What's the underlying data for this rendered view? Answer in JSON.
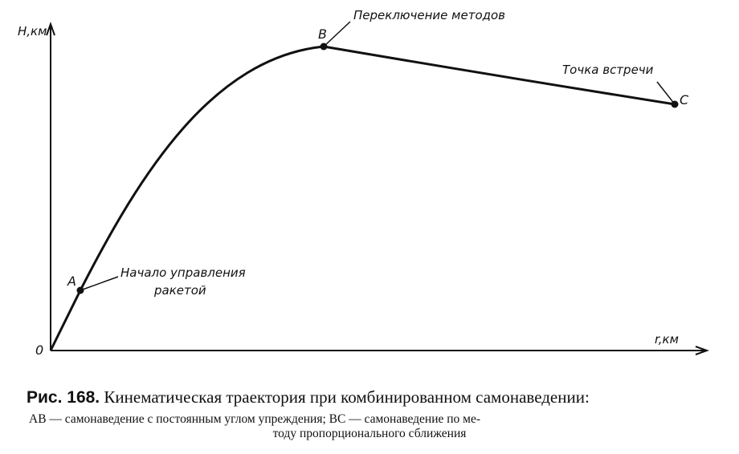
{
  "figure": {
    "y_axis_label": "Н,км",
    "x_axis_label": "r,км",
    "origin_label": "0",
    "points": [
      {
        "label": "A",
        "annotation": [
          "Начало управления",
          "ракетой"
        ]
      },
      {
        "label": "B",
        "annotation": [
          "Переключение методов"
        ]
      },
      {
        "label": "C",
        "annotation": [
          "Точка встречи"
        ]
      }
    ]
  },
  "caption": {
    "number": "Рис. 168.",
    "title": "Кинематическая траектория при комбинированном самонаведении:",
    "lines": [
      "АВ — самонаведение с постоянным углом упреждения; ВС — самонаведение по ме-",
      "тоду пропорционального сближения"
    ]
  }
}
